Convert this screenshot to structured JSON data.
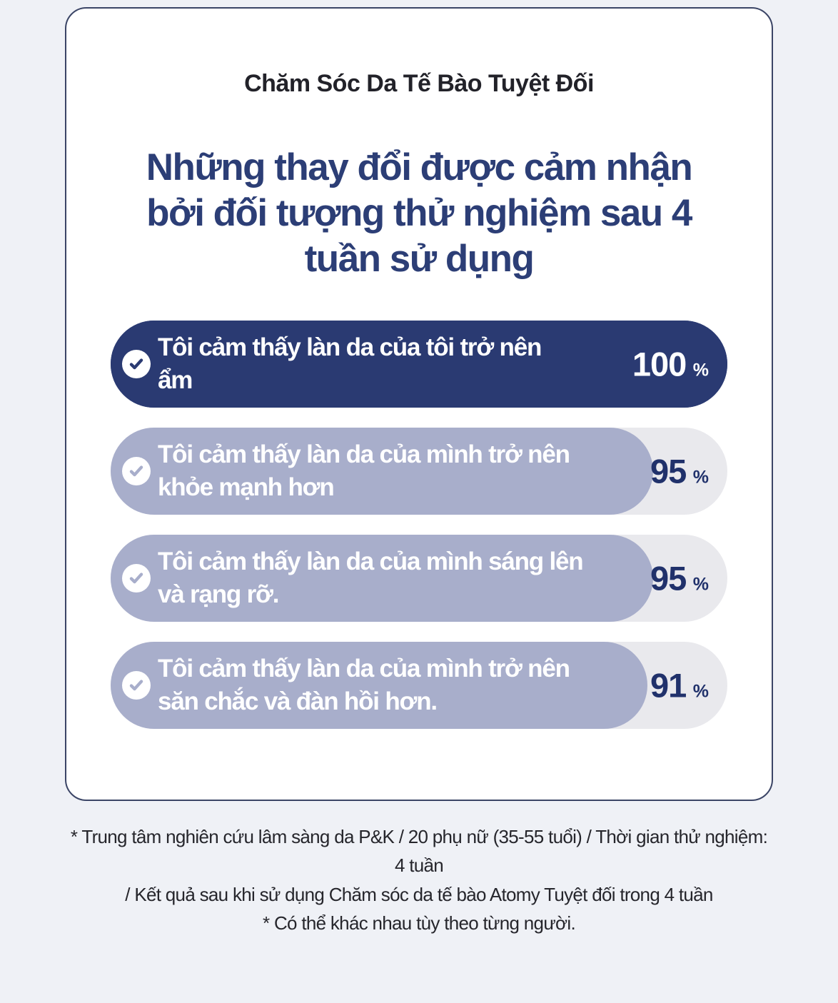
{
  "card": {
    "title": "Chăm Sóc Da Tế Bào Tuyệt Đối",
    "heading_lines": [
      "Những thay đổi được cảm nhận",
      "bởi đối tượng thử nghiệm sau 4",
      "tuần sử dụng"
    ]
  },
  "chart_data": {
    "type": "bar",
    "orientation": "horizontal",
    "title": "Những thay đổi được cảm nhận bởi đối tượng thử nghiệm sau 4 tuần sử dụng",
    "unit": "%",
    "xlim": [
      0,
      100
    ],
    "grid": false,
    "legend": false,
    "categories": [
      "Tôi cảm thấy làn da của tôi trở nên ẩm",
      "Tôi cảm thấy làn da của mình trở nên khỏe mạnh hơn",
      "Tôi cảm thấy làn da của mình sáng lên và rạng rỡ.",
      "Tôi cảm thấy làn da của mình trở nên săn chắc và đàn hồi hơn."
    ],
    "values": [
      100,
      95,
      95,
      91
    ],
    "label_lines": [
      [
        "Tôi cảm thấy làn da của tôi trở nên",
        "ẩm"
      ],
      [
        "Tôi cảm thấy làn da của mình trở nên",
        "khỏe mạnh hơn"
      ],
      [
        "Tôi cảm thấy làn da của mình sáng lên",
        "và rạng rỡ."
      ],
      [
        "Tôi cảm thấy làn da của mình trở nên",
        "săn chắc và đàn hồi hơn."
      ]
    ],
    "display": [
      {
        "fill_pct": 100,
        "fill": "#2a3a72",
        "track": "#2a3a72",
        "label_color": "#ffffff",
        "value_color": "#ffffff",
        "check_color": "#2a3a72"
      },
      {
        "fill_pct": 88,
        "fill": "#a8aecb",
        "track": "#e9e9ed",
        "label_color": "#ffffff",
        "value_color": "#20316b",
        "check_color": "#a8aecb"
      },
      {
        "fill_pct": 88,
        "fill": "#a8aecb",
        "track": "#e9e9ed",
        "label_color": "#ffffff",
        "value_color": "#20316b",
        "check_color": "#a8aecb"
      },
      {
        "fill_pct": 87,
        "fill": "#a8aecb",
        "track": "#e9e9ed",
        "label_color": "#ffffff",
        "value_color": "#20316b",
        "check_color": "#a8aecb"
      }
    ]
  },
  "footnotes": {
    "lines": [
      "* Trung tâm nghiên cứu lâm sàng da P&K / 20 phụ nữ (35-55 tuổi) / Thời gian thử nghiệm:",
      "4 tuần",
      "/ Kết quả sau khi sử dụng Chăm sóc da tế bào Atomy Tuyệt đối trong 4 tuần",
      "* Có thể khác nhau tùy theo từng người."
    ]
  },
  "colors": {
    "page_background": "#eff1f6",
    "card_background": "#ffffff",
    "card_border": "#3b4566",
    "heading_navy": "#2c3e76",
    "bar_navy": "#2a3a72",
    "bar_lavender": "#a8aecb",
    "bar_track_gray": "#e9e9ed",
    "percent_navy": "#20316b"
  }
}
